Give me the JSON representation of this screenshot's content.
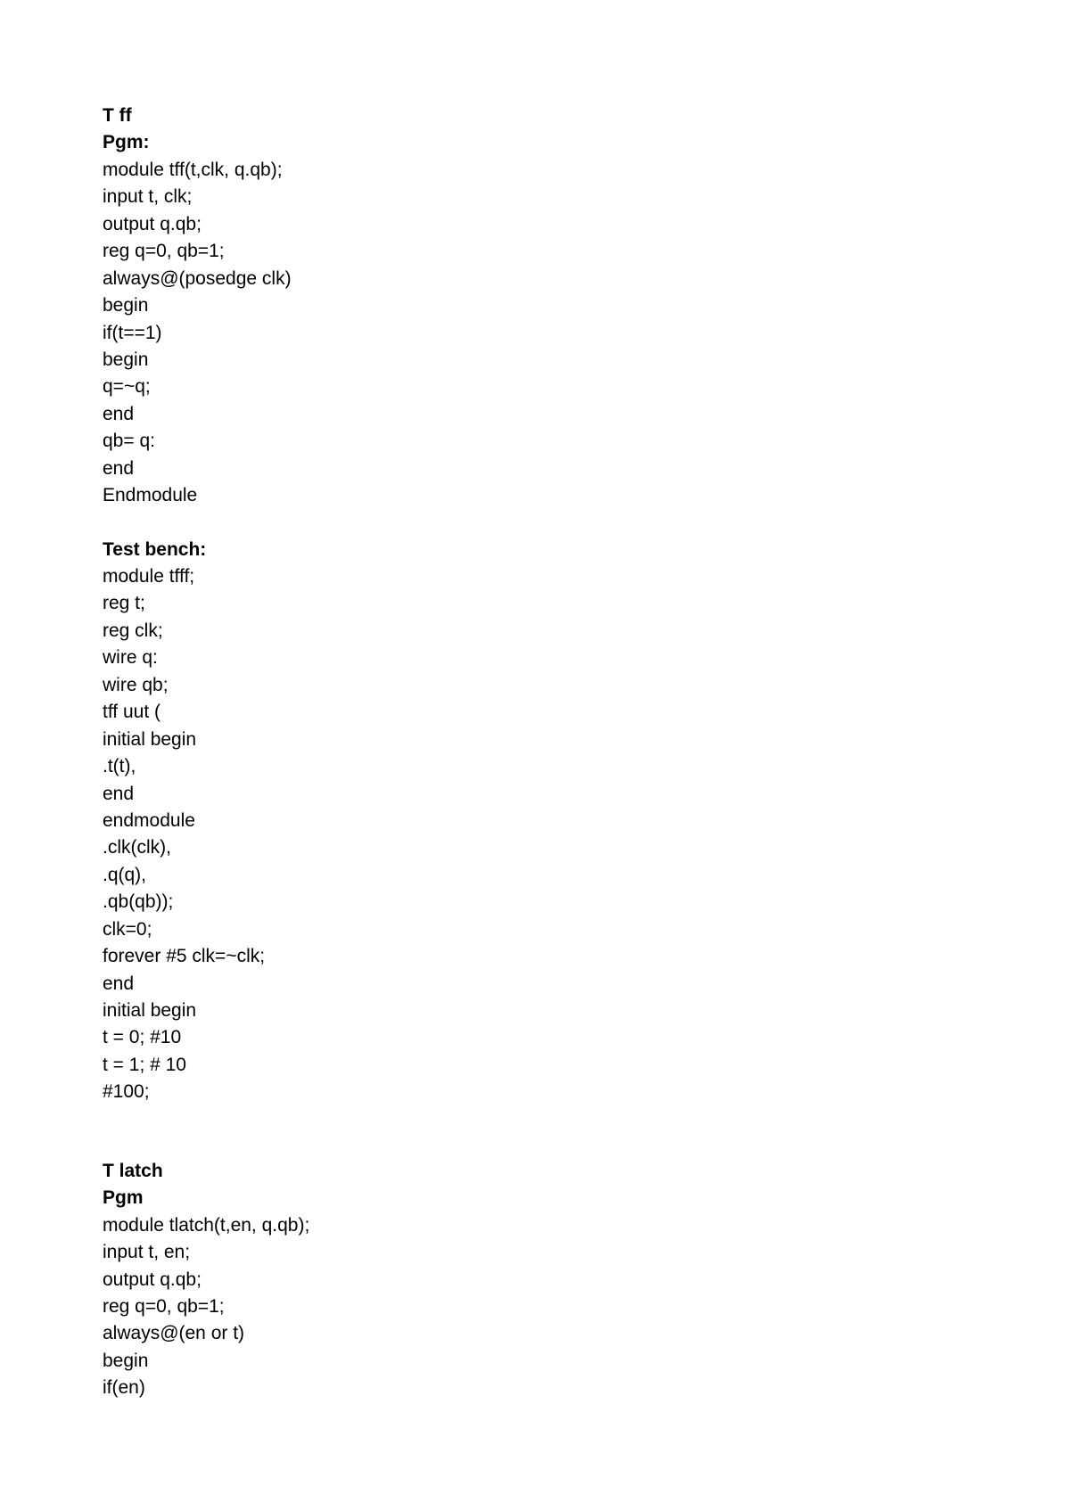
{
  "section1": {
    "title": "T ff",
    "pgm_label": "Pgm:",
    "pgm_lines": [
      "module tff(t,clk, q.qb);",
      "input t, clk;",
      "output q.qb;",
      "reg q=0, qb=1;",
      "always@(posedge clk)",
      "begin",
      "if(t==1)",
      "begin",
      "q=~q;",
      "end",
      "qb= q:",
      "end",
      "Endmodule"
    ]
  },
  "section2": {
    "title": "Test bench:",
    "lines": [
      "module tfff;",
      "reg t;",
      "reg clk;",
      "wire q:",
      "wire qb;",
      "tff uut (",
      "initial begin",
      ".t(t),",
      "end",
      "endmodule",
      ".clk(clk),",
      ".q(q),",
      ".qb(qb));",
      "clk=0;",
      "forever #5 clk=~clk;",
      "end",
      "initial begin",
      "t = 0; #10",
      "t = 1; # 10",
      "#100;"
    ]
  },
  "section3": {
    "title": "T latch",
    "pgm_label": "Pgm",
    "lines": [
      "module tlatch(t,en, q.qb);",
      "input t, en;",
      "output q.qb;",
      "reg q=0, qb=1;",
      "always@(en or t)",
      "begin",
      "if(en)"
    ]
  }
}
